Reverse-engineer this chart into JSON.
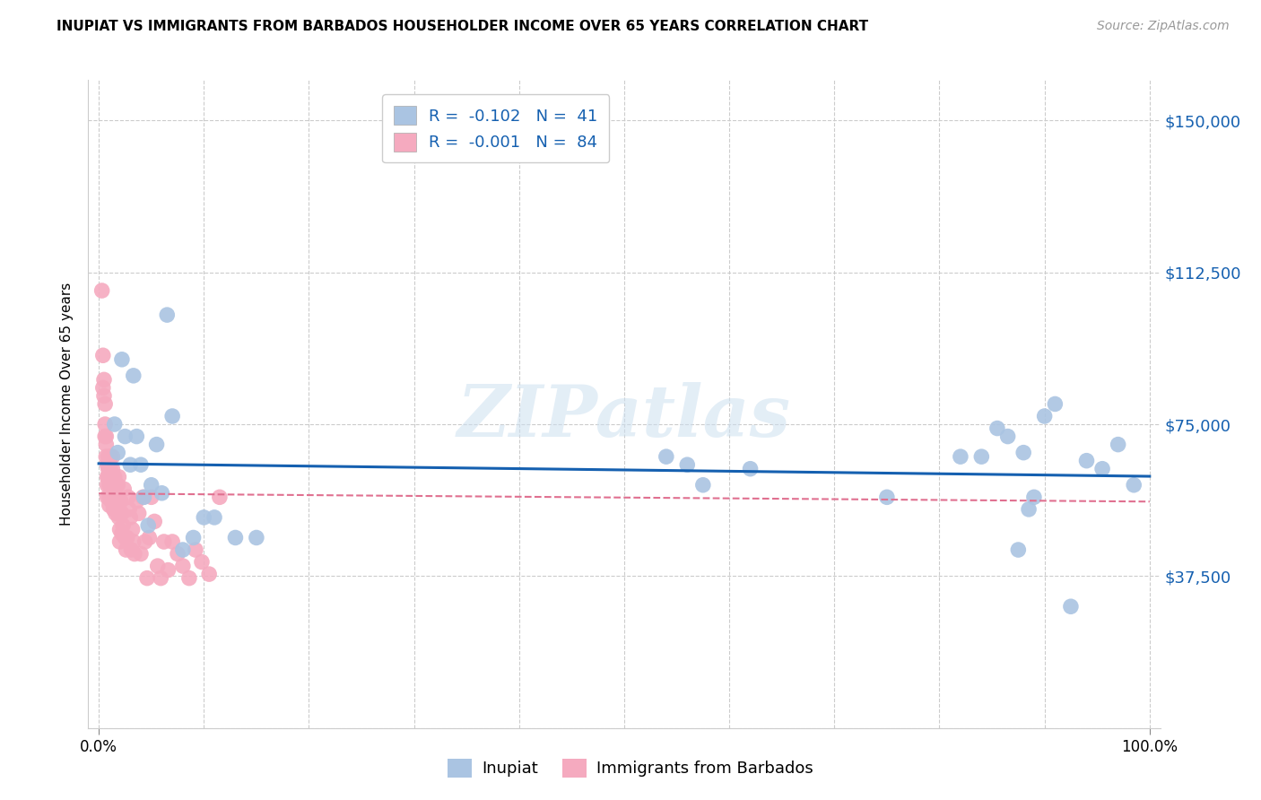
{
  "title": "INUPIAT VS IMMIGRANTS FROM BARBADOS HOUSEHOLDER INCOME OVER 65 YEARS CORRELATION CHART",
  "source": "Source: ZipAtlas.com",
  "ylabel": "Householder Income Over 65 years",
  "xlim": [
    -0.01,
    1.01
  ],
  "ylim": [
    0,
    160000
  ],
  "yticks": [
    0,
    37500,
    75000,
    112500,
    150000
  ],
  "ytick_labels": [
    "",
    "$37,500",
    "$75,000",
    "$112,500",
    "$150,000"
  ],
  "xtick_labels": [
    "0.0%",
    "100.0%"
  ],
  "background_color": "#ffffff",
  "grid_color": "#cccccc",
  "inupiat_color": "#aac4e2",
  "barbados_color": "#f5aabf",
  "inupiat_line_color": "#1560b0",
  "barbados_line_color": "#e07090",
  "inupiat_R": -0.102,
  "inupiat_N": 41,
  "barbados_R": -0.001,
  "barbados_N": 84,
  "watermark": "ZIPatlas",
  "inupiat_x": [
    0.015,
    0.018,
    0.022,
    0.025,
    0.03,
    0.033,
    0.036,
    0.04,
    0.043,
    0.047,
    0.05,
    0.055,
    0.06,
    0.065,
    0.07,
    0.08,
    0.09,
    0.1,
    0.11,
    0.13,
    0.15,
    0.54,
    0.56,
    0.575,
    0.62,
    0.75,
    0.82,
    0.84,
    0.855,
    0.865,
    0.875,
    0.88,
    0.885,
    0.89,
    0.9,
    0.91,
    0.925,
    0.94,
    0.955,
    0.97,
    0.985
  ],
  "inupiat_y": [
    75000,
    68000,
    91000,
    72000,
    65000,
    87000,
    72000,
    65000,
    57000,
    50000,
    60000,
    70000,
    58000,
    102000,
    77000,
    44000,
    47000,
    52000,
    52000,
    47000,
    47000,
    67000,
    65000,
    60000,
    64000,
    57000,
    67000,
    67000,
    74000,
    72000,
    44000,
    68000,
    54000,
    57000,
    77000,
    80000,
    30000,
    66000,
    64000,
    70000,
    60000
  ],
  "barbados_x": [
    0.003,
    0.004,
    0.004,
    0.005,
    0.005,
    0.006,
    0.006,
    0.006,
    0.007,
    0.007,
    0.007,
    0.008,
    0.008,
    0.008,
    0.008,
    0.009,
    0.009,
    0.009,
    0.01,
    0.01,
    0.01,
    0.01,
    0.011,
    0.011,
    0.011,
    0.011,
    0.012,
    0.012,
    0.012,
    0.013,
    0.013,
    0.013,
    0.014,
    0.014,
    0.014,
    0.015,
    0.015,
    0.015,
    0.016,
    0.016,
    0.017,
    0.017,
    0.018,
    0.018,
    0.019,
    0.019,
    0.02,
    0.02,
    0.021,
    0.022,
    0.022,
    0.023,
    0.024,
    0.025,
    0.026,
    0.027,
    0.028,
    0.029,
    0.03,
    0.031,
    0.032,
    0.033,
    0.034,
    0.036,
    0.038,
    0.04,
    0.042,
    0.044,
    0.046,
    0.048,
    0.05,
    0.053,
    0.056,
    0.059,
    0.062,
    0.066,
    0.07,
    0.075,
    0.08,
    0.086,
    0.092,
    0.098,
    0.105,
    0.115
  ],
  "barbados_y": [
    108000,
    92000,
    84000,
    86000,
    82000,
    80000,
    75000,
    72000,
    72000,
    70000,
    67000,
    65000,
    62000,
    60000,
    57000,
    67000,
    64000,
    62000,
    62000,
    60000,
    57000,
    55000,
    67000,
    64000,
    60000,
    57000,
    62000,
    59000,
    56000,
    67000,
    64000,
    60000,
    57000,
    54000,
    62000,
    62000,
    59000,
    56000,
    56000,
    53000,
    60000,
    57000,
    60000,
    56000,
    52000,
    62000,
    49000,
    46000,
    56000,
    53000,
    48000,
    50000,
    59000,
    47000,
    44000,
    47000,
    57000,
    54000,
    52000,
    44000,
    49000,
    46000,
    43000,
    56000,
    53000,
    43000,
    57000,
    46000,
    37000,
    47000,
    57000,
    51000,
    40000,
    37000,
    46000,
    39000,
    46000,
    43000,
    40000,
    37000,
    44000,
    41000,
    38000,
    57000
  ]
}
